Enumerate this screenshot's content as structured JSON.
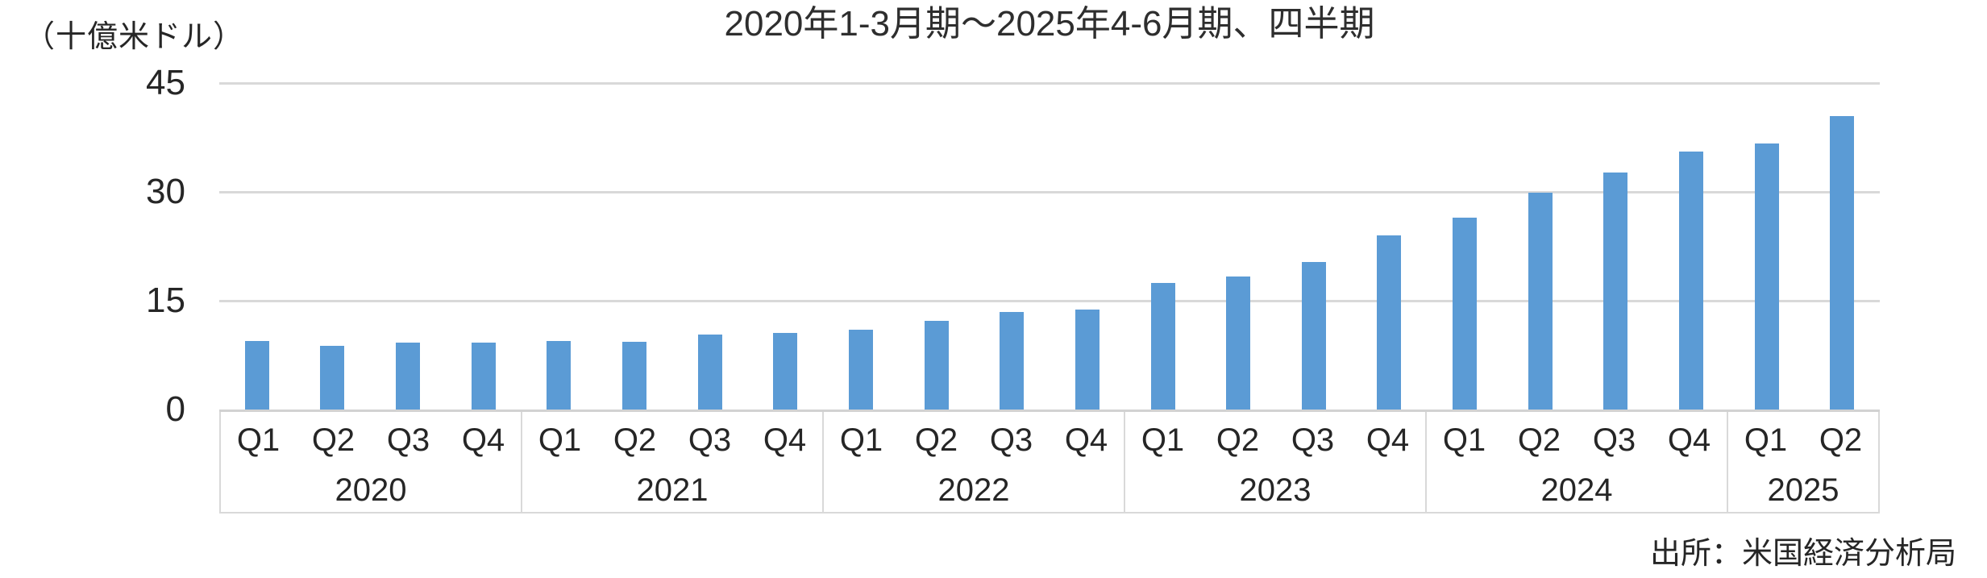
{
  "chart_data": {
    "type": "bar",
    "title": "2020年1-3月期～2025年4-6月期、四半期",
    "ylabel_unit": "（十億米ドル）",
    "source": "出所：米国経済分析局",
    "ylim": [
      0,
      45
    ],
    "yticks": [
      45,
      30,
      15,
      0
    ],
    "gridlines_at": [
      45,
      30,
      15
    ],
    "grid_on": true,
    "legend": "none",
    "colors": {
      "bar": "#5B9BD5",
      "gridline": "#D9D9D9",
      "axis_line": "#D2D2D2",
      "text": "#262626"
    },
    "groups": [
      {
        "year": "2020",
        "quarters": [
          "Q1",
          "Q2",
          "Q3",
          "Q4"
        ],
        "values": [
          9.4,
          8.8,
          9.2,
          9.2
        ]
      },
      {
        "year": "2021",
        "quarters": [
          "Q1",
          "Q2",
          "Q3",
          "Q4"
        ],
        "values": [
          9.5,
          9.3,
          10.3,
          10.6
        ]
      },
      {
        "year": "2022",
        "quarters": [
          "Q1",
          "Q2",
          "Q3",
          "Q4"
        ],
        "values": [
          11.0,
          12.2,
          13.4,
          13.8
        ]
      },
      {
        "year": "2023",
        "quarters": [
          "Q1",
          "Q2",
          "Q3",
          "Q4"
        ],
        "values": [
          17.4,
          18.3,
          20.3,
          24.0
        ]
      },
      {
        "year": "2024",
        "quarters": [
          "Q1",
          "Q2",
          "Q3",
          "Q4"
        ],
        "values": [
          26.4,
          29.9,
          32.7,
          35.6
        ]
      },
      {
        "year": "2025",
        "quarters": [
          "Q1",
          "Q2"
        ],
        "values": [
          36.7,
          40.4
        ]
      }
    ]
  }
}
